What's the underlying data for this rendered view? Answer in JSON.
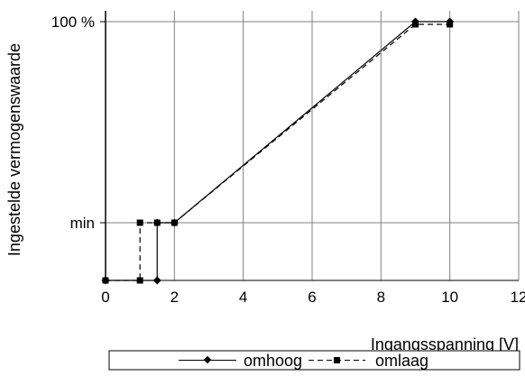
{
  "chart_data": {
    "type": "line",
    "xlabel": "Ingangsspanning [V]",
    "ylabel": "Ingestelde vermogenswaarde",
    "x_ticks": [
      0,
      2,
      4,
      6,
      8,
      10,
      12
    ],
    "y_ticks": [
      {
        "value": "min",
        "label": "min"
      },
      {
        "value": "100%",
        "label": "100 %"
      }
    ],
    "xlim": [
      0,
      12
    ],
    "y_levels": [
      "off",
      "min",
      "100%"
    ],
    "grid": true,
    "legend_position": "bottom",
    "series": [
      {
        "name": "omhoog",
        "style": "solid",
        "marker": "diamond",
        "points": [
          {
            "x": 0,
            "y": "off"
          },
          {
            "x": 1.5,
            "y": "off"
          },
          {
            "x": 1.5,
            "y": "min"
          },
          {
            "x": 2,
            "y": "min"
          },
          {
            "x": 9,
            "y": "100%"
          },
          {
            "x": 10,
            "y": "100%"
          }
        ]
      },
      {
        "name": "omlaag",
        "style": "dashed",
        "marker": "square",
        "points": [
          {
            "x": 0,
            "y": "off"
          },
          {
            "x": 1,
            "y": "off"
          },
          {
            "x": 1,
            "y": "min"
          },
          {
            "x": 1.5,
            "y": "min"
          },
          {
            "x": 2,
            "y": "min"
          },
          {
            "x": 9,
            "y": "100%"
          },
          {
            "x": 10,
            "y": "100%"
          }
        ]
      }
    ]
  },
  "colors": {
    "line": "#000000",
    "grid": "#808080",
    "background": "#ffffff"
  }
}
